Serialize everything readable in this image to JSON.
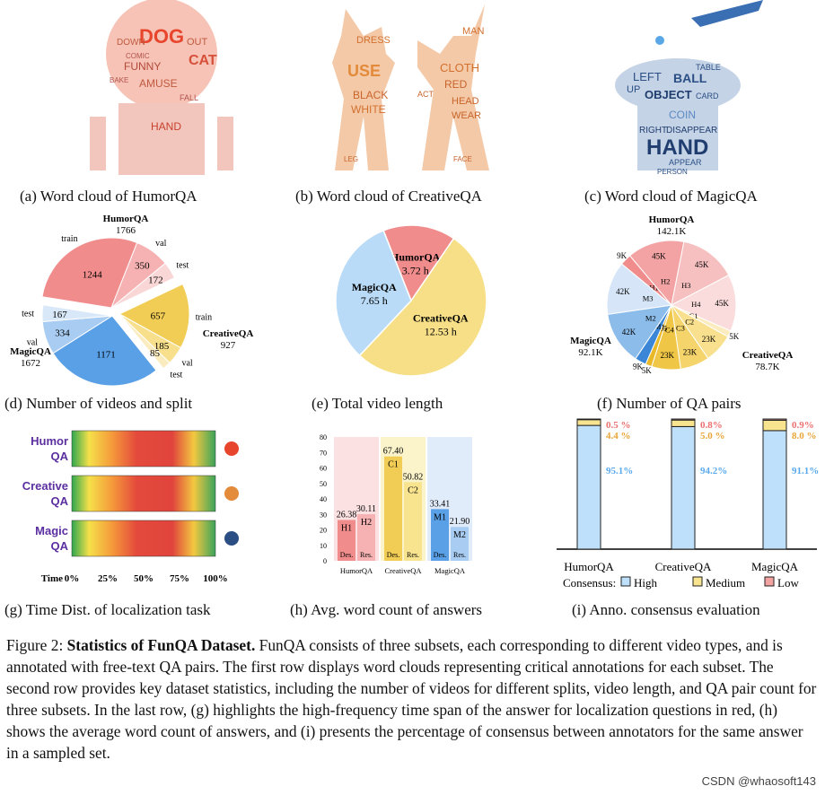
{
  "captions": {
    "a": "(a) Word cloud of HumorQA",
    "b": "(b) Word cloud of CreativeQA",
    "c": "(c) Word cloud of MagicQA",
    "d": "(d) Number of videos and split",
    "e": "(e) Total video length",
    "f": "(f) Number of QA pairs",
    "g": "(g) Time Dist. of localization task",
    "h": "(h) Avg. word count of answers",
    "i": "(i) Anno. consensus evaluation"
  },
  "wordclouds": {
    "humor": [
      "DOG",
      "CAT",
      "FUNNY",
      "OUT",
      "DOWN",
      "AMUSE",
      "BAKE",
      "HAND",
      "FALL",
      "COMIC"
    ],
    "creative": [
      "DRESS",
      "MAN",
      "USE",
      "CLOTH",
      "RED",
      "HEAD",
      "WEAR",
      "BLACK",
      "WHITE",
      "ACT",
      "LEG",
      "FACE"
    ],
    "magic": [
      "LEFT",
      "BALL",
      "TABLE",
      "UP",
      "OBJECT",
      "CARD",
      "COIN",
      "RIGHT",
      "DISAPPEAR",
      "HAND",
      "APPEAR",
      "PERSON"
    ]
  },
  "figure_caption": {
    "label": "Figure 2:",
    "title": "Statistics of FunQA Dataset.",
    "body": "FunQA consists of three subsets, each corresponding to different video types, and is annotated with free-text QA pairs. The first row displays word clouds representing critical annotations for each subset. The second row provides key dataset statistics, including the number of videos for different splits, video length, and QA pair count for three subsets. In the last row, (g) highlights the high-frequency time span of the answer for localization questions in red, (h) shows the average word count of answers, and (i) presents the percentage of consensus between annotators for the same answer in a sampled set."
  },
  "watermark": "CSDN @whaosoft143",
  "chart_data": [
    {
      "id": "d",
      "type": "pie",
      "slices": [
        {
          "group": "HumorQA",
          "split": "train",
          "value": 1244,
          "color": "#f08c8c"
        },
        {
          "group": "HumorQA",
          "split": "val",
          "value": 350,
          "color": "#f6b2b2"
        },
        {
          "group": "HumorQA",
          "split": "test",
          "value": 172,
          "color": "#fad7d7"
        },
        {
          "group": "CreativeQA",
          "split": "train",
          "value": 657,
          "color": "#f2cd55"
        },
        {
          "group": "CreativeQA",
          "split": "val",
          "value": 185,
          "color": "#f7df8c"
        },
        {
          "group": "CreativeQA",
          "split": "test",
          "value": 85,
          "color": "#fbecbf"
        },
        {
          "group": "MagicQA",
          "split": "train",
          "value": 1171,
          "color": "#5aa0e6"
        },
        {
          "group": "MagicQA",
          "split": "val",
          "value": 334,
          "color": "#a9cdf2"
        },
        {
          "group": "MagicQA",
          "split": "test",
          "value": 167,
          "color": "#d9e8f8"
        }
      ],
      "groups": [
        {
          "name": "HumorQA",
          "total": "1766"
        },
        {
          "name": "CreativeQA",
          "total": "927"
        },
        {
          "name": "MagicQA",
          "total": "1672"
        }
      ]
    },
    {
      "id": "e",
      "type": "pie",
      "slices": [
        {
          "name": "HumorQA",
          "value": 3.72,
          "label": "3.72 h",
          "color": "#f08c8c"
        },
        {
          "name": "CreativeQA",
          "value": 12.53,
          "label": "12.53 h",
          "color": "#f6df87"
        },
        {
          "name": "MagicQA",
          "value": 7.65,
          "label": "7.65 h",
          "color": "#b9dbf7"
        }
      ]
    },
    {
      "id": "f",
      "type": "pie",
      "slices": [
        {
          "name": "H1",
          "value": 9,
          "label": "9K",
          "color": "#f08c8c"
        },
        {
          "name": "H2",
          "value": 45,
          "label": "45K",
          "color": "#f3a3a3"
        },
        {
          "name": "H3",
          "value": 45,
          "label": "45K",
          "color": "#f7c0c0"
        },
        {
          "name": "H4",
          "value": 45,
          "label": "45K",
          "color": "#fbdcdc"
        },
        {
          "name": "C1",
          "value": 5,
          "label": "5K",
          "color": "#fbecbf"
        },
        {
          "name": "C2",
          "value": 23,
          "label": "23K",
          "color": "#f8e08e"
        },
        {
          "name": "C3",
          "value": 23,
          "label": "23K",
          "color": "#f5d46c"
        },
        {
          "name": "C4",
          "value": 23,
          "label": "23K",
          "color": "#f0c646"
        },
        {
          "name": "C5",
          "value": 5,
          "label": "5K",
          "color": "#e9b928"
        },
        {
          "name": "M1",
          "value": 9,
          "label": "9K",
          "color": "#3b86d6"
        },
        {
          "name": "M2",
          "value": 42,
          "label": "42K",
          "color": "#8cbcea"
        },
        {
          "name": "M3",
          "value": 42,
          "label": "42K",
          "color": "#d6e6f8"
        }
      ],
      "groups": [
        {
          "name": "HumorQA",
          "total": "142.1K"
        },
        {
          "name": "CreativeQA",
          "total": "78.7K"
        },
        {
          "name": "MagicQA",
          "total": "92.1K"
        }
      ]
    },
    {
      "id": "g",
      "type": "heatmap",
      "rows": [
        "Humor QA",
        "Creative QA",
        "Magic QA"
      ],
      "xlabel": "Time",
      "ticks": [
        "0%",
        "25%",
        "50%",
        "75%",
        "100%"
      ]
    },
    {
      "id": "h",
      "type": "bar",
      "categories": [
        "HumorQA",
        "CreativeQA",
        "MagicQA"
      ],
      "series": [
        {
          "name": "Des.",
          "values": [
            26.38,
            67.4,
            33.41
          ],
          "tags": [
            "H1",
            "C1",
            "M1"
          ]
        },
        {
          "name": "Res.",
          "values": [
            30.11,
            50.82,
            21.9
          ],
          "tags": [
            "H2",
            "C2",
            "M2"
          ]
        }
      ],
      "ylim": [
        0,
        80
      ],
      "yticks": [
        "0",
        "10",
        "20",
        "30",
        "40",
        "50",
        "60",
        "70",
        "80"
      ],
      "value_labels": [
        [
          "26.38",
          "30.11"
        ],
        [
          "67.40",
          "50.82"
        ],
        [
          "33.41",
          "21.90"
        ]
      ]
    },
    {
      "id": "i",
      "type": "bar",
      "categories": [
        "HumorQA",
        "CreativeQA",
        "MagicQA"
      ],
      "series": [
        {
          "name": "High",
          "values": [
            95.1,
            94.2,
            91.1
          ],
          "labels": [
            "95.1%",
            "94.2%",
            "91.1%"
          ],
          "color": "#bfe0fb"
        },
        {
          "name": "Medium",
          "values": [
            4.4,
            5.0,
            8.0
          ],
          "labels": [
            "4.4 %",
            "5.0 %",
            "8.0 %"
          ],
          "color": "#f8e48f"
        },
        {
          "name": "Low",
          "values": [
            0.5,
            0.8,
            0.9
          ],
          "labels": [
            "0.5 %",
            "0.8%",
            "0.9%"
          ],
          "color": "#f4a3a3"
        }
      ],
      "legend_title": "Consensus:"
    }
  ]
}
